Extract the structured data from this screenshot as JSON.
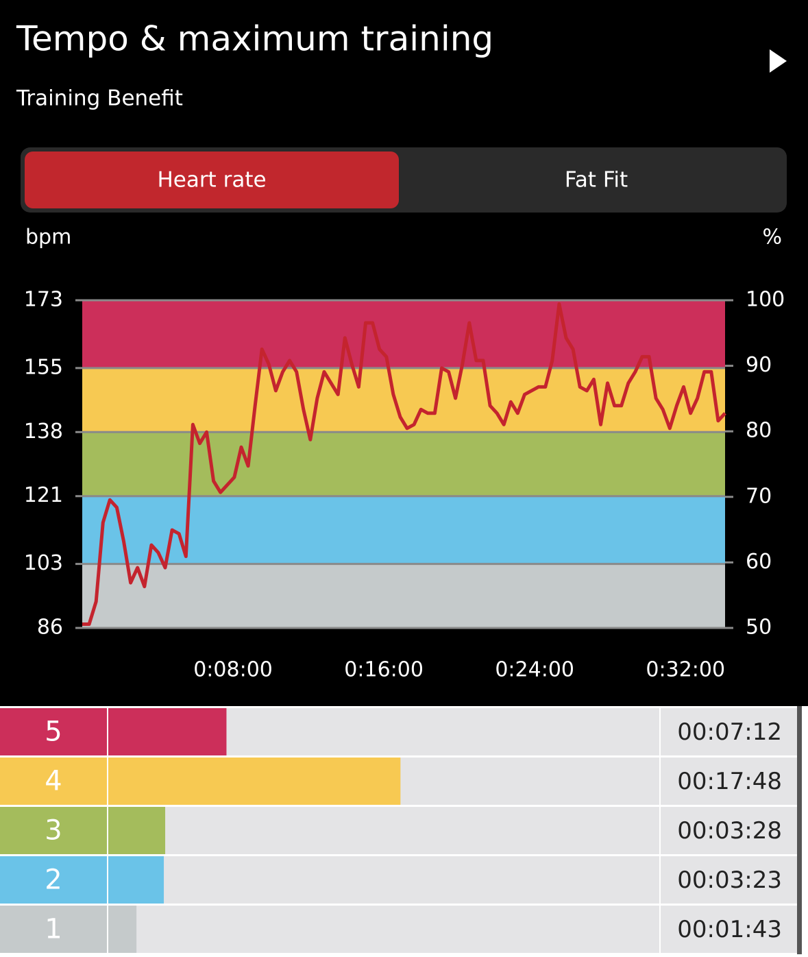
{
  "header": {
    "title": "Tempo & maximum training",
    "subtitle": "Training Benefit"
  },
  "tabs": [
    "Heart rate",
    "Fat Fit"
  ],
  "chart_data": {
    "type": "line",
    "y_label": "bpm",
    "y2_label": "%",
    "color": "#c4242e",
    "band_colors": [
      "#c5cacb",
      "#6ac3e8",
      "#a4bc5c",
      "#f7c952",
      "#cc2f5a"
    ],
    "xlim": [
      0,
      2046
    ],
    "xticks": [
      {
        "value": 480,
        "label": "0:08:00"
      },
      {
        "value": 960,
        "label": "0:16:00"
      },
      {
        "value": 1440,
        "label": "0:24:00"
      },
      {
        "value": 1920,
        "label": "0:32:00"
      }
    ],
    "ylim": [
      86,
      173
    ],
    "yticks": [
      86,
      103,
      121,
      138,
      155,
      173
    ],
    "y2lim": [
      50,
      100
    ],
    "y2ticks": [
      50,
      60,
      70,
      80,
      90,
      100
    ],
    "x": [
      0,
      22,
      44,
      66,
      88,
      110,
      132,
      154,
      176,
      198,
      220,
      242,
      264,
      286,
      308,
      330,
      352,
      374,
      396,
      418,
      440,
      462,
      484,
      506,
      528,
      550,
      572,
      594,
      616,
      638,
      660,
      682,
      704,
      726,
      748,
      770,
      792,
      814,
      836,
      858,
      880,
      902,
      924,
      946,
      968,
      990,
      1012,
      1034,
      1056,
      1078,
      1100,
      1122,
      1144,
      1166,
      1188,
      1210,
      1232,
      1254,
      1276,
      1298,
      1320,
      1342,
      1364,
      1386,
      1408,
      1430,
      1452,
      1474,
      1496,
      1518,
      1540,
      1562,
      1584,
      1606,
      1628,
      1650,
      1672,
      1694,
      1716,
      1738,
      1760,
      1782,
      1804,
      1826,
      1848,
      1870,
      1892,
      1914,
      1936,
      1958,
      1980,
      2002,
      2024,
      2046
    ],
    "values": [
      87,
      87,
      93,
      114,
      120,
      118,
      109,
      98,
      102,
      97,
      108,
      106,
      102,
      112,
      111,
      105,
      140,
      135,
      138,
      125,
      122,
      124,
      126,
      134,
      129,
      145,
      160,
      156,
      149,
      154,
      157,
      154,
      144,
      136,
      147,
      154,
      151,
      148,
      163,
      156,
      150,
      167,
      167,
      160,
      158,
      148,
      142,
      139,
      140,
      144,
      143,
      143,
      155,
      154,
      147,
      156,
      167,
      157,
      157,
      145,
      143,
      140,
      146,
      143,
      148,
      149,
      150,
      150,
      157,
      172,
      163,
      160,
      150,
      149,
      152,
      140,
      151,
      145,
      145,
      151,
      154,
      158,
      158,
      147,
      144,
      139,
      145,
      150,
      143,
      147,
      154,
      154,
      141,
      143
    ]
  },
  "zone_bars": {
    "categories": [
      "5",
      "4",
      "3",
      "2",
      "1"
    ],
    "values": [
      432,
      1068,
      208,
      203,
      103
    ],
    "value_labels": [
      "00:07:12",
      "00:17:48",
      "00:03:28",
      "00:03:23",
      "00:01:43"
    ],
    "colors": [
      "#cc2f5a",
      "#f7c952",
      "#a4bc5c",
      "#6ac3e8",
      "#c5cacb"
    ]
  }
}
